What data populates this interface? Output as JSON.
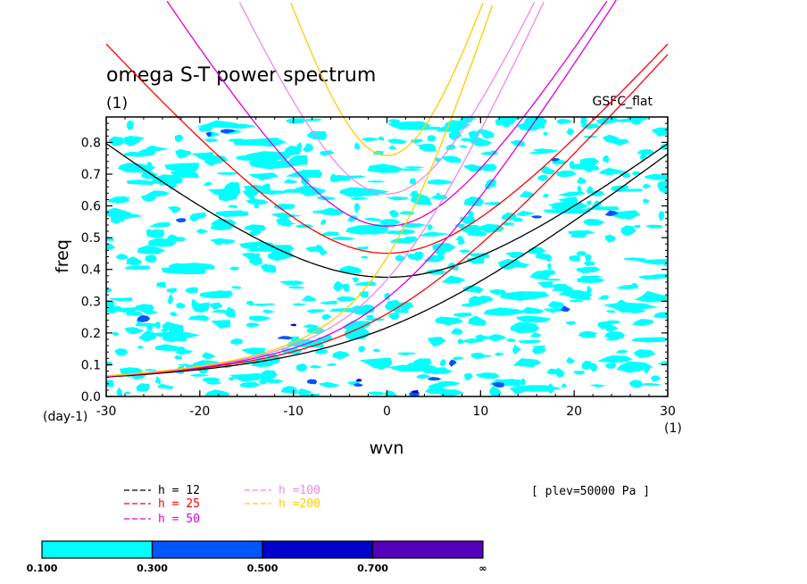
{
  "chart_data": {
    "type": "contour",
    "title": "omega S-T power spectrum",
    "subtitle": "(1)",
    "model_label": "GSFC_flat",
    "xlabel": "wvn",
    "xunit": "(1)",
    "ylabel": "freq",
    "yunit": "(day-1)",
    "xlim": [
      -30,
      30
    ],
    "ylim": [
      0,
      0.88
    ],
    "xticks": [
      -30,
      -20,
      -10,
      0,
      10,
      20,
      30
    ],
    "yticks": [
      0.0,
      0.1,
      0.2,
      0.3,
      0.4,
      0.5,
      0.6,
      0.7,
      0.8
    ],
    "annotation": "[ plev=50000 Pa ]",
    "dispersion_curves": [
      {
        "name": "h = 12",
        "h": 12,
        "color": "#000000"
      },
      {
        "name": "h = 25",
        "h": 25,
        "color": "#ff0000"
      },
      {
        "name": "h = 50",
        "h": 50,
        "color": "#dd00dd"
      },
      {
        "name": "h =100",
        "h": 100,
        "color": "#ee88ee"
      },
      {
        "name": "h =200",
        "h": 200,
        "color": "#ffcc00"
      }
    ],
    "colorbar": {
      "levels": [
        "0.100",
        "0.300",
        "0.500",
        "0.700",
        "∞"
      ],
      "colors": [
        "#00ffff",
        "#0055ff",
        "#0000cc",
        "#5500bb"
      ]
    }
  }
}
